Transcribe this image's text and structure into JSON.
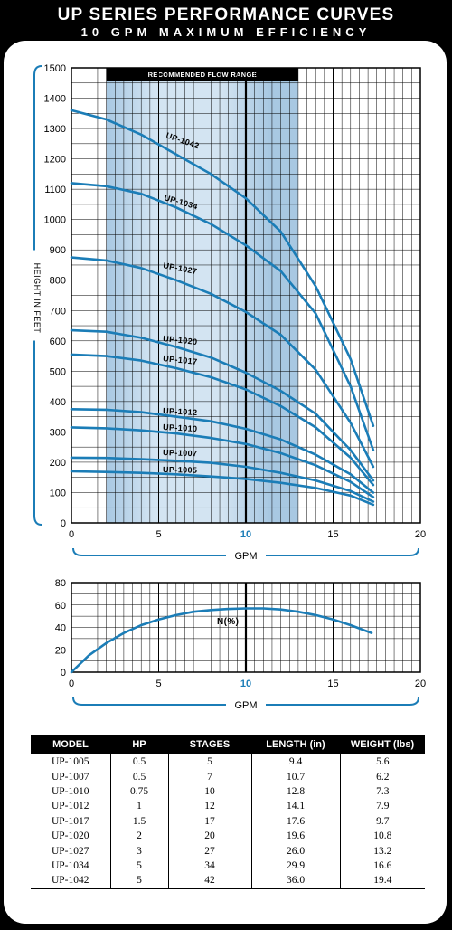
{
  "header": {
    "title": "UP SERIES PERFORMANCE CURVES",
    "subtitle": "10 GPM MAXIMUM EFFICIENCY"
  },
  "chart_data": [
    {
      "type": "line",
      "title": "",
      "xlabel": "GPM",
      "ylabel": "HEIGHT IN FEET",
      "xlim": [
        0,
        20
      ],
      "ylim": [
        0,
        1500
      ],
      "x_ticks": [
        0,
        5,
        10,
        15,
        20
      ],
      "y_ticks": [
        0,
        100,
        200,
        300,
        400,
        500,
        600,
        700,
        800,
        900,
        1000,
        1100,
        1200,
        1300,
        1400,
        1500
      ],
      "highlighted_tick": 10,
      "grid": true,
      "band_label": "RECOMMENDED FLOW RANGE",
      "band_range": [
        2,
        13
      ],
      "marker_line_x": 10,
      "series": [
        {
          "name": "UP-1042",
          "x": [
            0,
            2,
            4,
            6,
            8,
            10,
            12,
            14,
            16,
            17.3
          ],
          "y": [
            1360,
            1330,
            1280,
            1215,
            1150,
            1070,
            960,
            780,
            540,
            320
          ]
        },
        {
          "name": "UP-1034",
          "x": [
            0,
            2,
            4,
            6,
            8,
            10,
            12,
            14,
            16,
            17.3
          ],
          "y": [
            1120,
            1110,
            1085,
            1040,
            985,
            915,
            830,
            690,
            450,
            240
          ]
        },
        {
          "name": "UP-1027",
          "x": [
            0,
            2,
            4,
            6,
            8,
            10,
            12,
            14,
            16,
            17.3
          ],
          "y": [
            875,
            865,
            840,
            800,
            755,
            695,
            620,
            505,
            330,
            185
          ]
        },
        {
          "name": "UP-1020",
          "x": [
            0,
            2,
            4,
            6,
            8,
            10,
            12,
            14,
            16,
            17.3
          ],
          "y": [
            635,
            630,
            610,
            580,
            545,
            495,
            435,
            360,
            240,
            140
          ]
        },
        {
          "name": "UP-1017",
          "x": [
            0,
            2,
            4,
            6,
            8,
            10,
            12,
            14,
            16,
            17.3
          ],
          "y": [
            555,
            550,
            535,
            510,
            480,
            440,
            385,
            315,
            215,
            125
          ]
        },
        {
          "name": "UP-1012",
          "x": [
            0,
            2,
            4,
            6,
            8,
            10,
            12,
            14,
            16,
            17.3
          ],
          "y": [
            375,
            373,
            365,
            350,
            335,
            310,
            275,
            225,
            160,
            100
          ]
        },
        {
          "name": "UP-1010",
          "x": [
            0,
            2,
            4,
            6,
            8,
            10,
            12,
            14,
            16,
            17.3
          ],
          "y": [
            315,
            312,
            305,
            295,
            280,
            260,
            230,
            190,
            135,
            85
          ]
        },
        {
          "name": "UP-1007",
          "x": [
            0,
            2,
            4,
            6,
            8,
            10,
            12,
            14,
            16,
            17.3
          ],
          "y": [
            215,
            214,
            210,
            205,
            198,
            185,
            165,
            140,
            105,
            70
          ]
        },
        {
          "name": "UP-1005",
          "x": [
            0,
            2,
            4,
            6,
            8,
            10,
            12,
            14,
            16,
            17.3
          ],
          "y": [
            170,
            168,
            165,
            160,
            153,
            145,
            132,
            115,
            90,
            60
          ]
        }
      ]
    },
    {
      "type": "line",
      "title": "",
      "xlabel": "GPM",
      "ylabel": "",
      "xlim": [
        0,
        20
      ],
      "ylim": [
        0,
        80
      ],
      "x_ticks": [
        0,
        5,
        10,
        15,
        20
      ],
      "y_ticks": [
        0,
        20,
        40,
        60,
        80
      ],
      "highlighted_tick": 10,
      "grid": true,
      "marker_line_x": 10,
      "series": [
        {
          "name": "N(%)",
          "x": [
            0,
            1,
            2,
            3,
            4,
            5,
            6,
            7,
            8,
            9,
            10,
            11,
            12,
            13,
            14,
            15,
            16,
            17.2
          ],
          "y": [
            0,
            15,
            26,
            35,
            42,
            47,
            51,
            54,
            55.5,
            56.5,
            57,
            57,
            56,
            54,
            51,
            47,
            42,
            35
          ]
        }
      ]
    }
  ],
  "table": {
    "headers": [
      "MODEL",
      "HP",
      "STAGES",
      "LENGTH (in)",
      "WEIGHT (lbs)"
    ],
    "rows": [
      [
        "UP-1005",
        "0.5",
        "5",
        "9.4",
        "5.6"
      ],
      [
        "UP-1007",
        "0.5",
        "7",
        "10.7",
        "6.2"
      ],
      [
        "UP-1010",
        "0.75",
        "10",
        "12.8",
        "7.3"
      ],
      [
        "UP-1012",
        "1",
        "12",
        "14.1",
        "7.9"
      ],
      [
        "UP-1017",
        "1.5",
        "17",
        "17.6",
        "9.7"
      ],
      [
        "UP-1020",
        "2",
        "20",
        "19.6",
        "10.8"
      ],
      [
        "UP-1027",
        "3",
        "27",
        "26.0",
        "13.2"
      ],
      [
        "UP-1034",
        "5",
        "34",
        "29.9",
        "16.6"
      ],
      [
        "UP-1042",
        "5",
        "42",
        "36.0",
        "19.4"
      ]
    ]
  },
  "colors": {
    "curve": "#1b7db7",
    "band": "#a8c8e2",
    "band_light": "#d3e4f2",
    "grid": "#000000",
    "background": "#000000",
    "panel": "#ffffff"
  }
}
